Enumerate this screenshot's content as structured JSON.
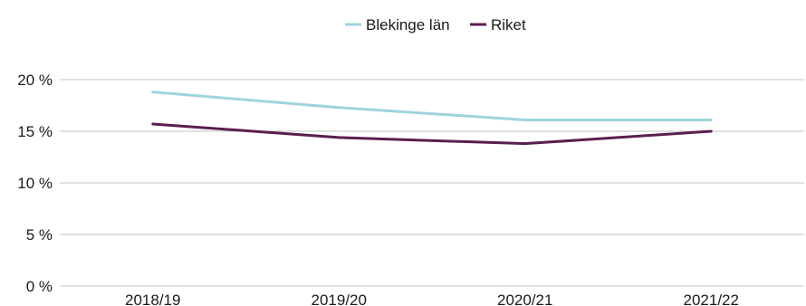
{
  "chart_data": {
    "type": "line",
    "title": "",
    "xlabel": "",
    "ylabel": "",
    "categories": [
      "2018/19",
      "2019/20",
      "2020/21",
      "2021/22"
    ],
    "series": [
      {
        "name": "Blekinge län",
        "values": [
          18.8,
          17.3,
          16.1,
          16.1
        ],
        "color": "#9fd3db"
      },
      {
        "name": "Riket",
        "values": [
          15.7,
          14.4,
          13.8,
          15.0
        ],
        "color": "#5a1f4e"
      }
    ],
    "ylim": [
      0,
      20
    ],
    "yticks": [
      0,
      5,
      10,
      15,
      20
    ],
    "ytick_labels": [
      "0 %",
      "5 %",
      "10 %",
      "15 %",
      "20 %"
    ],
    "grid": "horizontal",
    "legend_position": "top-center"
  }
}
